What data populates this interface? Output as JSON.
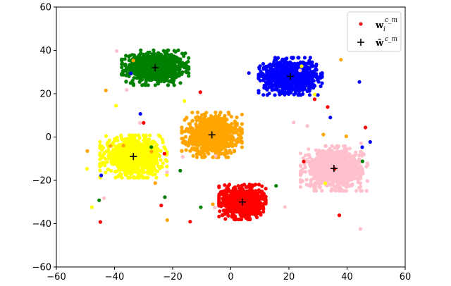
{
  "chart_data": {
    "type": "scatter",
    "title": "",
    "xlabel": "",
    "ylabel": "",
    "xlim": [
      -60,
      60
    ],
    "ylim": [
      -60,
      60
    ],
    "xticks": [
      "−60",
      "−40",
      "−20",
      "0",
      "20",
      "40",
      "60"
    ],
    "yticks": [
      "−60",
      "−40",
      "−20",
      "0",
      "20",
      "40",
      "60"
    ],
    "grid": false,
    "legend_position": "top-right",
    "legend": [
      {
        "label": "w",
        "sub": "i",
        "sup": "c_m",
        "marker": "dot",
        "color": "#e31a1c"
      },
      {
        "label": "w̄",
        "sup": "c_m",
        "marker": "plus",
        "color": "#000000"
      }
    ],
    "clusters": [
      {
        "color": "#008000",
        "center": [
          -26.0,
          32.0
        ],
        "spread": [
          10.0,
          7.0
        ],
        "count": 900
      },
      {
        "color": "#0000ff",
        "center": [
          20.5,
          28.0
        ],
        "spread": [
          9.5,
          7.5
        ],
        "count": 900
      },
      {
        "color": "#ffa500",
        "center": [
          -6.5,
          1.0
        ],
        "spread": [
          9.0,
          9.0
        ],
        "count": 900
      },
      {
        "color": "#ffff00",
        "center": [
          -33.5,
          -9.0
        ],
        "spread": [
          10.0,
          8.5
        ],
        "count": 900
      },
      {
        "color": "#ffc0cb",
        "center": [
          35.5,
          -14.5
        ],
        "spread": [
          10.0,
          9.0
        ],
        "count": 900
      },
      {
        "color": "#ff0000",
        "center": [
          4.0,
          -30.0
        ],
        "spread": [
          7.0,
          7.0
        ],
        "count": 900
      }
    ],
    "centroids": [
      {
        "x": -26.0,
        "y": 32.0
      },
      {
        "x": 20.5,
        "y": 28.0
      },
      {
        "x": -6.5,
        "y": 1.0
      },
      {
        "x": -33.5,
        "y": -9.0
      },
      {
        "x": 35.5,
        "y": -14.5
      },
      {
        "x": 4.0,
        "y": -30.0
      }
    ]
  }
}
